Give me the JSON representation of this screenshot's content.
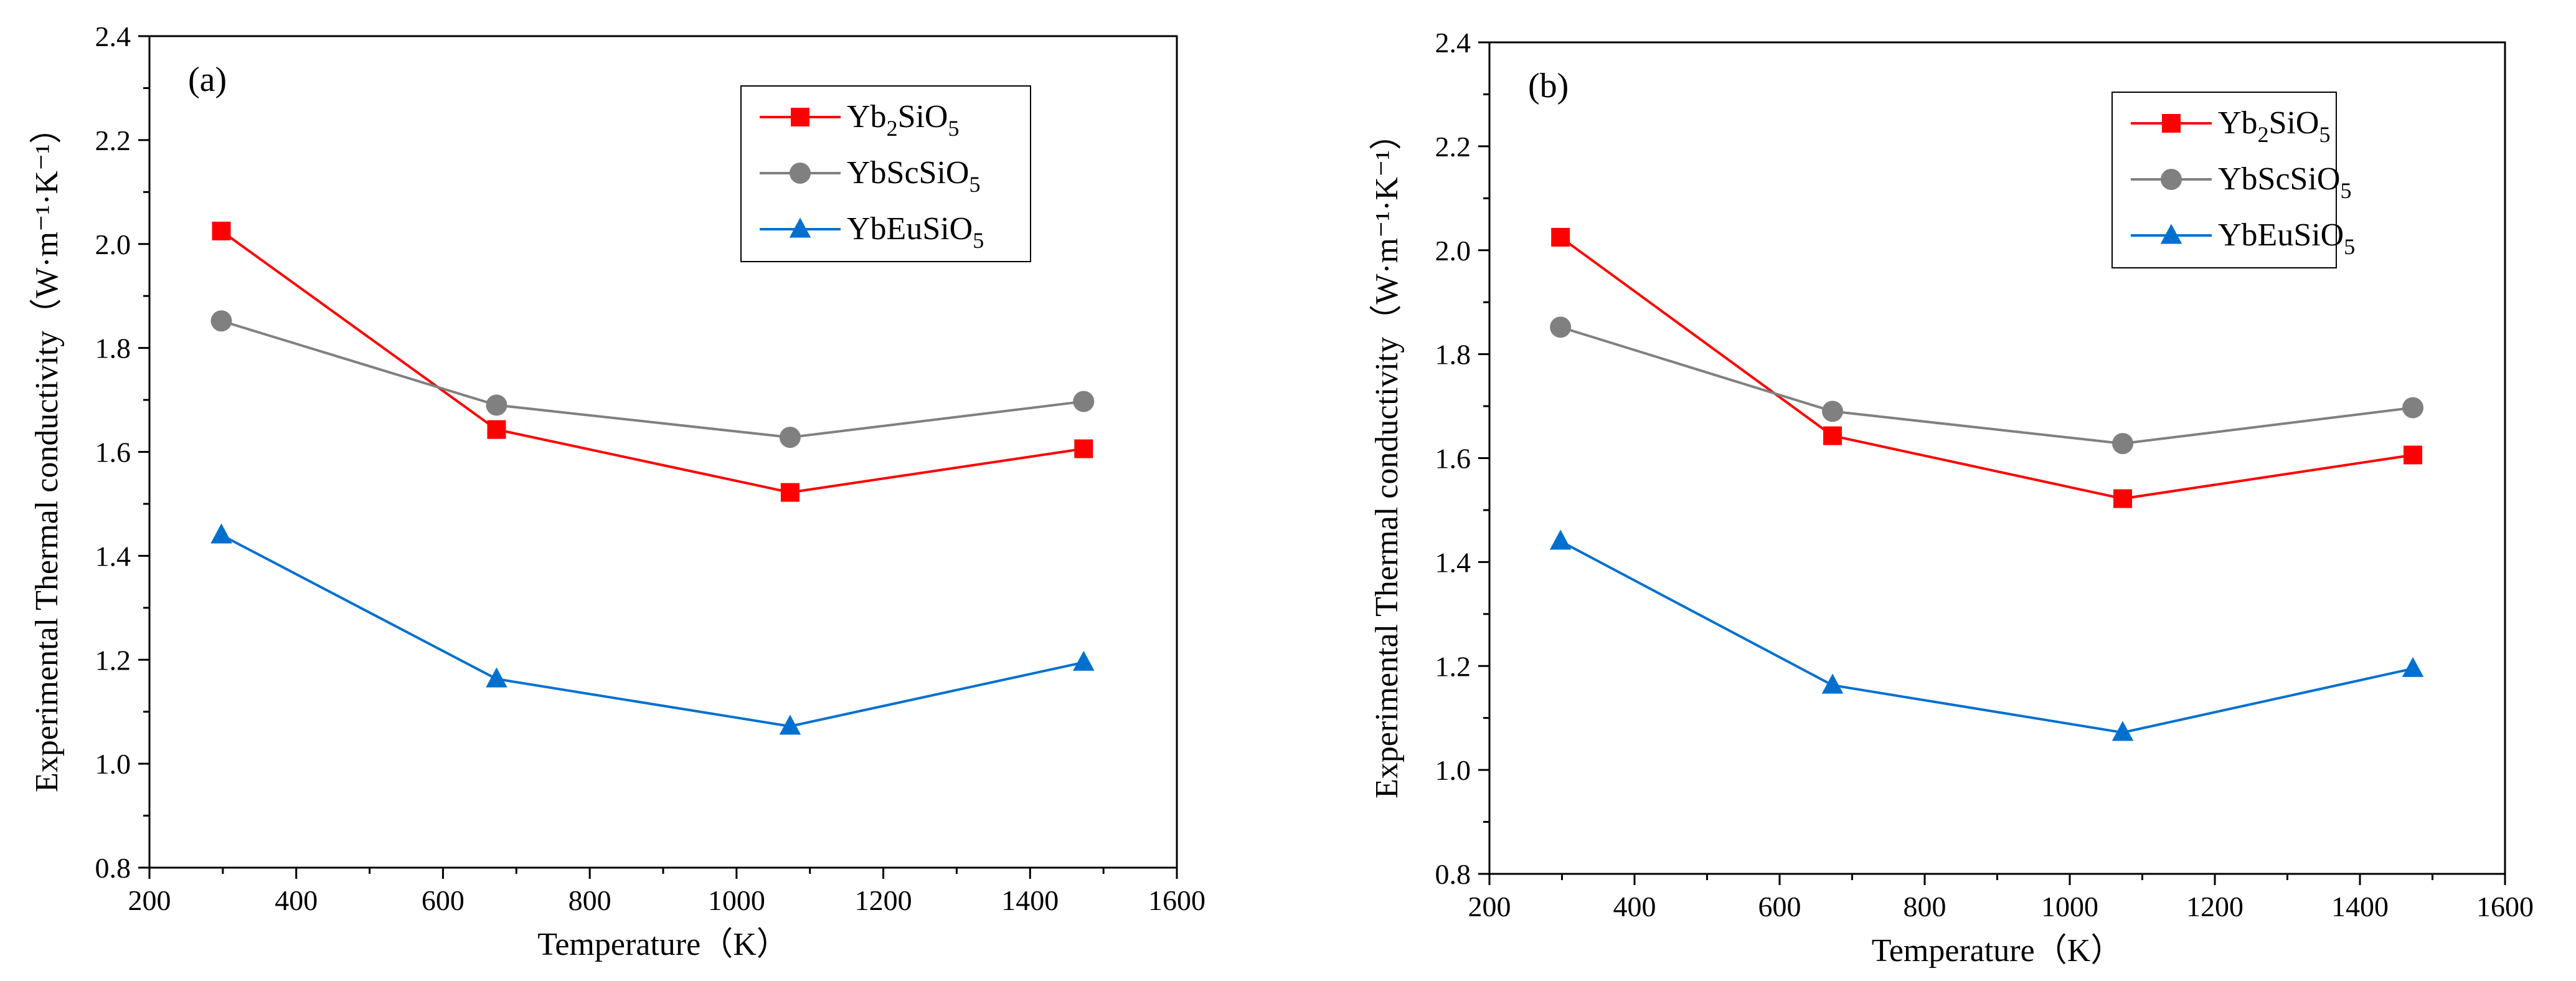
{
  "chart_data": [
    {
      "type": "line",
      "panel_label": "(a)",
      "xlabel": "Temperature（K）",
      "ylabel": "Experimental Thermal conductivity（W·m⁻¹·K⁻¹）",
      "xlim": [
        200,
        1600
      ],
      "ylim": [
        0.8,
        2.4
      ],
      "xticks": [
        200,
        400,
        600,
        800,
        1000,
        1200,
        1400,
        1600
      ],
      "yticks": [
        0.8,
        1.0,
        1.2,
        1.4,
        1.6,
        1.8,
        2.0,
        2.2,
        2.4
      ],
      "x": [
        298,
        673,
        1073,
        1473
      ],
      "legend_position": "top-right",
      "series": [
        {
          "name": "Yb2SiO5",
          "formula": [
            "Yb",
            "2",
            "SiO",
            "5"
          ],
          "marker": "square",
          "color": "#ff0000",
          "values": [
            2.025,
            1.643,
            1.522,
            1.606
          ]
        },
        {
          "name": "YbScSiO5",
          "formula": [
            "YbScSiO",
            "5"
          ],
          "marker": "circle",
          "color": "#808080",
          "values": [
            1.852,
            1.69,
            1.628,
            1.697
          ]
        },
        {
          "name": "YbEuSiO5",
          "formula": [
            "YbEuSiO",
            "5"
          ],
          "marker": "triangle",
          "color": "#0070d0",
          "values": [
            1.44,
            1.163,
            1.072,
            1.195
          ]
        }
      ]
    },
    {
      "type": "line",
      "panel_label": "(b)",
      "xlabel": "Temperature（K）",
      "ylabel": "Experimental Thermal conductivity（W·m⁻¹·K⁻¹）",
      "xlim": [
        200,
        1600
      ],
      "ylim": [
        0.8,
        2.4
      ],
      "xticks": [
        200,
        400,
        600,
        800,
        1000,
        1200,
        1400,
        1600
      ],
      "yticks": [
        0.8,
        1.0,
        1.2,
        1.4,
        1.6,
        1.8,
        2.0,
        2.2,
        2.4
      ],
      "x": [
        298,
        673,
        1073,
        1473
      ],
      "legend_position": "top-right",
      "series": [
        {
          "name": "Yb2SiO5",
          "formula": [
            "Yb",
            "2",
            "SiO",
            "5"
          ],
          "marker": "square",
          "color": "#ff0000",
          "values": [
            2.025,
            1.643,
            1.522,
            1.606
          ]
        },
        {
          "name": "YbScSiO5",
          "formula": [
            "YbScSiO",
            "5"
          ],
          "marker": "circle",
          "color": "#808080",
          "values": [
            1.852,
            1.69,
            1.628,
            1.697
          ]
        },
        {
          "name": "YbEuSiO5",
          "formula": [
            "YbEuSiO",
            "5"
          ],
          "marker": "triangle",
          "color": "#0070d0",
          "values": [
            1.44,
            1.163,
            1.072,
            1.195
          ]
        }
      ]
    }
  ]
}
